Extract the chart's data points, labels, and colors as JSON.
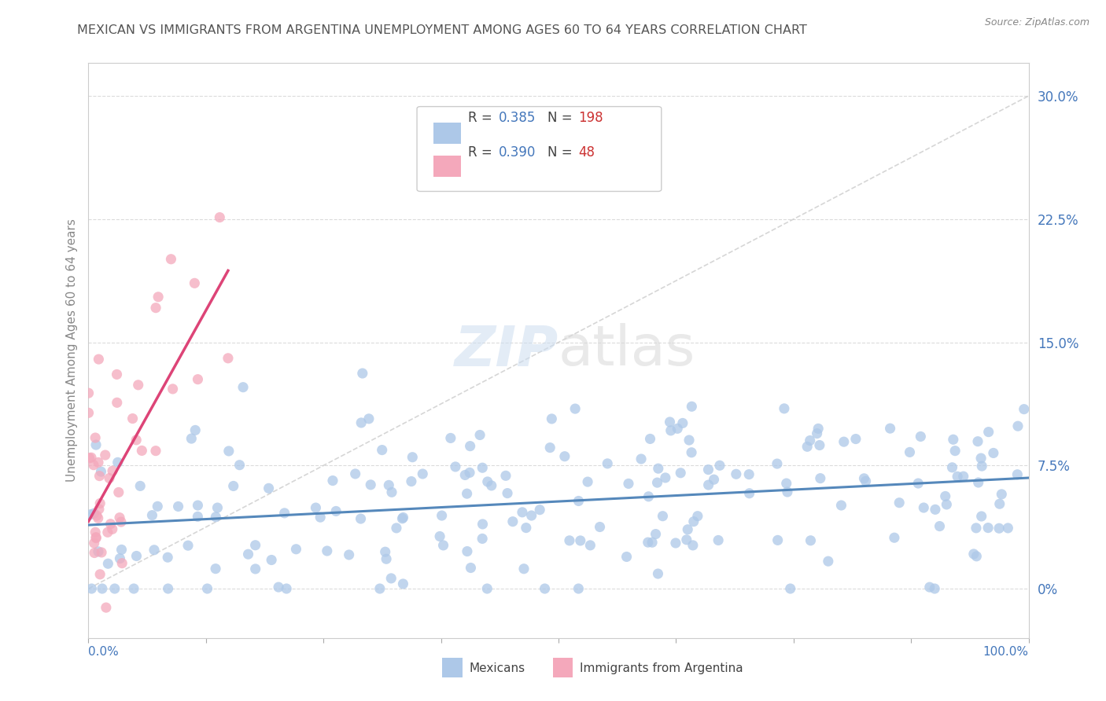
{
  "title": "MEXICAN VS IMMIGRANTS FROM ARGENTINA UNEMPLOYMENT AMONG AGES 60 TO 64 YEARS CORRELATION CHART",
  "source": "Source: ZipAtlas.com",
  "ylabel": "Unemployment Among Ages 60 to 64 years",
  "xlim": [
    0,
    100
  ],
  "ylim": [
    -3,
    32
  ],
  "yticks": [
    0,
    7.5,
    15.0,
    22.5,
    30.0
  ],
  "ytick_labels": [
    "0%",
    "7.5%",
    "15.0%",
    "22.5%",
    "30.0%"
  ],
  "blue_R": 0.385,
  "blue_N": 198,
  "pink_R": 0.39,
  "pink_N": 48,
  "blue_color": "#adc8e8",
  "pink_color": "#f4a8bb",
  "blue_line_color": "#5588bb",
  "pink_line_color": "#dd4477",
  "legend_blue_label": "Mexicans",
  "legend_pink_label": "Immigrants from Argentina",
  "watermark_zip": "ZIP",
  "watermark_atlas": "atlas",
  "title_color": "#555555",
  "axis_label_color": "#4477bb",
  "source_color": "#888888"
}
